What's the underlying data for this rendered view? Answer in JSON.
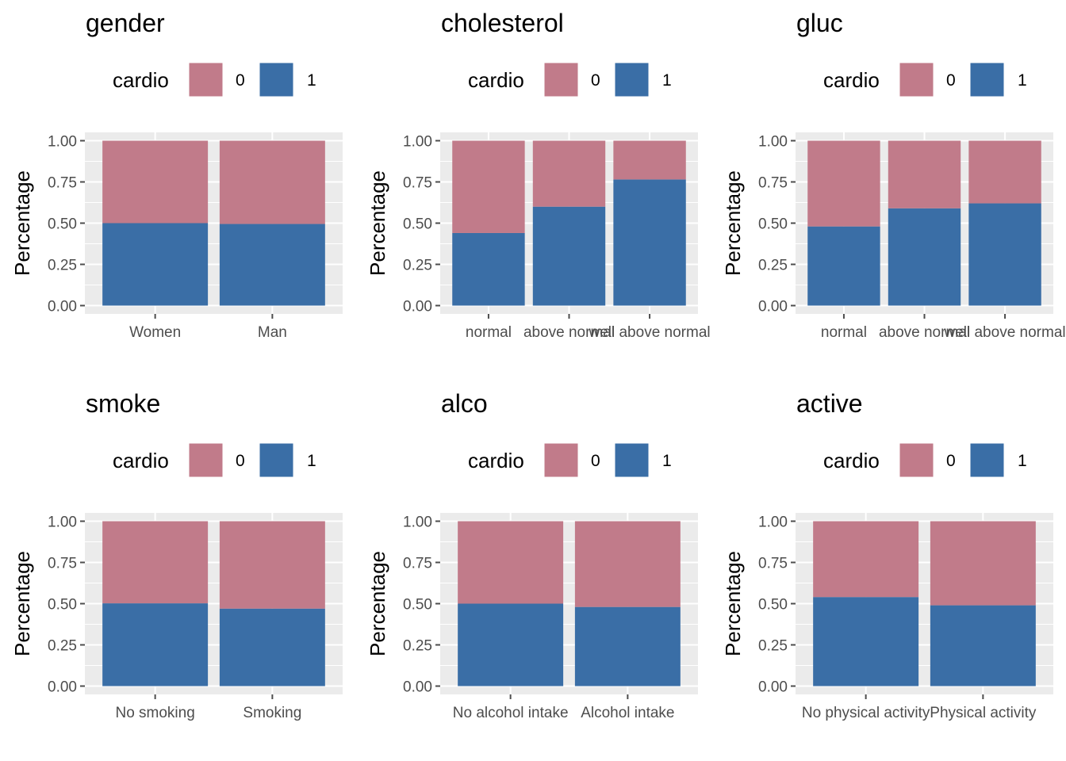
{
  "colors": {
    "cardio_0": "#C17B8A",
    "cardio_1": "#3A6EA6",
    "panel": "#EBEBEB",
    "grid": "#FFFFFF",
    "tick": "#4D4D4D"
  },
  "legend": {
    "title": "cardio",
    "labels": [
      "0",
      "1"
    ]
  },
  "chart_data": [
    {
      "type": "bar",
      "title": "gender",
      "ylabel": "Percentage",
      "xlabel": "",
      "ylim": [
        0,
        1
      ],
      "y_ticks": [
        "0.00",
        "0.25",
        "0.50",
        "0.75",
        "1.00"
      ],
      "categories": [
        "Women",
        "Man"
      ],
      "series": [
        {
          "name": "0",
          "values": [
            0.5,
            0.505
          ]
        },
        {
          "name": "1",
          "values": [
            0.5,
            0.495
          ]
        }
      ]
    },
    {
      "type": "bar",
      "title": "cholesterol",
      "ylabel": "Percentage",
      "xlabel": "",
      "ylim": [
        0,
        1
      ],
      "y_ticks": [
        "0.00",
        "0.25",
        "0.50",
        "0.75",
        "1.00"
      ],
      "categories": [
        "normal",
        "above normal",
        "well above normal"
      ],
      "series": [
        {
          "name": "0",
          "values": [
            0.56,
            0.4,
            0.235
          ]
        },
        {
          "name": "1",
          "values": [
            0.44,
            0.6,
            0.765
          ]
        }
      ]
    },
    {
      "type": "bar",
      "title": "gluc",
      "ylabel": "Percentage",
      "xlabel": "",
      "ylim": [
        0,
        1
      ],
      "y_ticks": [
        "0.00",
        "0.25",
        "0.50",
        "0.75",
        "1.00"
      ],
      "categories": [
        "normal",
        "above normal",
        "well above normal"
      ],
      "series": [
        {
          "name": "0",
          "values": [
            0.52,
            0.41,
            0.38
          ]
        },
        {
          "name": "1",
          "values": [
            0.48,
            0.59,
            0.62
          ]
        }
      ]
    },
    {
      "type": "bar",
      "title": "smoke",
      "ylabel": "Percentage",
      "xlabel": "",
      "ylim": [
        0,
        1
      ],
      "y_ticks": [
        "0.00",
        "0.25",
        "0.50",
        "0.75",
        "1.00"
      ],
      "categories": [
        "No smoking",
        "Smoking"
      ],
      "series": [
        {
          "name": "0",
          "values": [
            0.498,
            0.53
          ]
        },
        {
          "name": "1",
          "values": [
            0.502,
            0.47
          ]
        }
      ]
    },
    {
      "type": "bar",
      "title": "alco",
      "ylabel": "Percentage",
      "xlabel": "",
      "ylim": [
        0,
        1
      ],
      "y_ticks": [
        "0.00",
        "0.25",
        "0.50",
        "0.75",
        "1.00"
      ],
      "categories": [
        "No alcohol intake",
        "Alcohol intake"
      ],
      "series": [
        {
          "name": "0",
          "values": [
            0.5,
            0.52
          ]
        },
        {
          "name": "1",
          "values": [
            0.5,
            0.48
          ]
        }
      ]
    },
    {
      "type": "bar",
      "title": "active",
      "ylabel": "Percentage",
      "xlabel": "",
      "ylim": [
        0,
        1
      ],
      "y_ticks": [
        "0.00",
        "0.25",
        "0.50",
        "0.75",
        "1.00"
      ],
      "categories": [
        "No physical activity",
        "Physical activity"
      ],
      "series": [
        {
          "name": "0",
          "values": [
            0.46,
            0.51
          ]
        },
        {
          "name": "1",
          "values": [
            0.54,
            0.49
          ]
        }
      ]
    }
  ]
}
